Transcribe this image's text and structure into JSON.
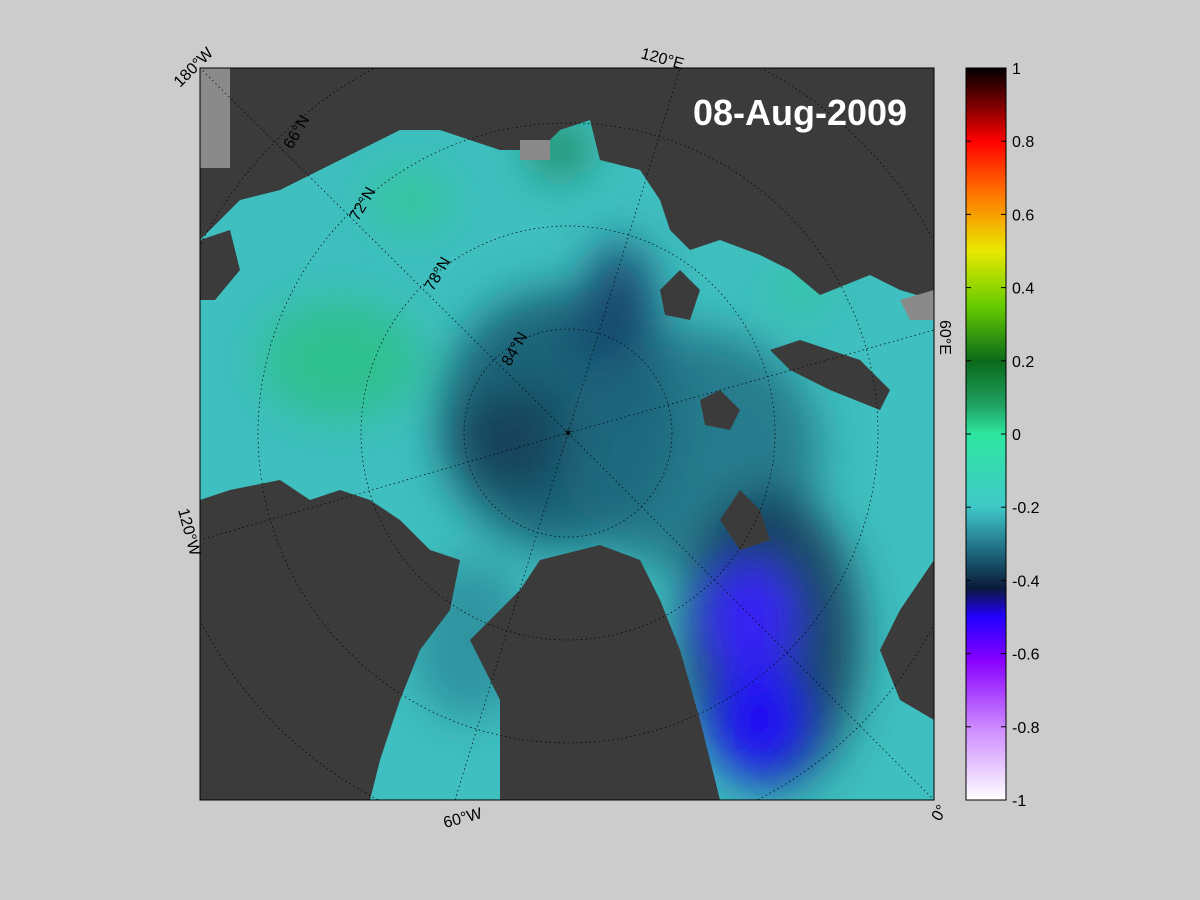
{
  "date_label": "08-Aug-2009",
  "colorbar": {
    "ticks": [
      "1",
      "0.8",
      "0.6",
      "0.4",
      "0.2",
      "0",
      "-0.2",
      "-0.4",
      "-0.6",
      "-0.8",
      "-1"
    ],
    "stops": [
      {
        "value": 1.0,
        "color": "#000000"
      },
      {
        "value": 0.9,
        "color": "#7a0000"
      },
      {
        "value": 0.8,
        "color": "#ff0000"
      },
      {
        "value": 0.65,
        "color": "#ff7a00"
      },
      {
        "value": 0.5,
        "color": "#e8e800"
      },
      {
        "value": 0.35,
        "color": "#66cc00"
      },
      {
        "value": 0.2,
        "color": "#0a6a1a"
      },
      {
        "value": 0.08,
        "color": "#1fa060"
      },
      {
        "value": 0.0,
        "color": "#2ee6a0"
      },
      {
        "value": -0.2,
        "color": "#40c8c8"
      },
      {
        "value": -0.32,
        "color": "#1f6a80"
      },
      {
        "value": -0.42,
        "color": "#0a1a3a"
      },
      {
        "value": -0.5,
        "color": "#2200ff"
      },
      {
        "value": -0.62,
        "color": "#8800ff"
      },
      {
        "value": -0.8,
        "color": "#cc88ff"
      },
      {
        "value": -1.0,
        "color": "#ffffff"
      }
    ]
  },
  "graticule": {
    "latitude_labels": [
      "66°N",
      "72°N",
      "78°N",
      "84°N"
    ],
    "longitude_labels": [
      "180°W",
      "120°E",
      "60°E",
      "120°W",
      "60°W",
      "0°"
    ]
  },
  "colors": {
    "land": "#3b3b3b",
    "land_gray": "#8a8a8a",
    "ocean_base": "#3fbfbf",
    "figure_bg": "#cccccc"
  }
}
